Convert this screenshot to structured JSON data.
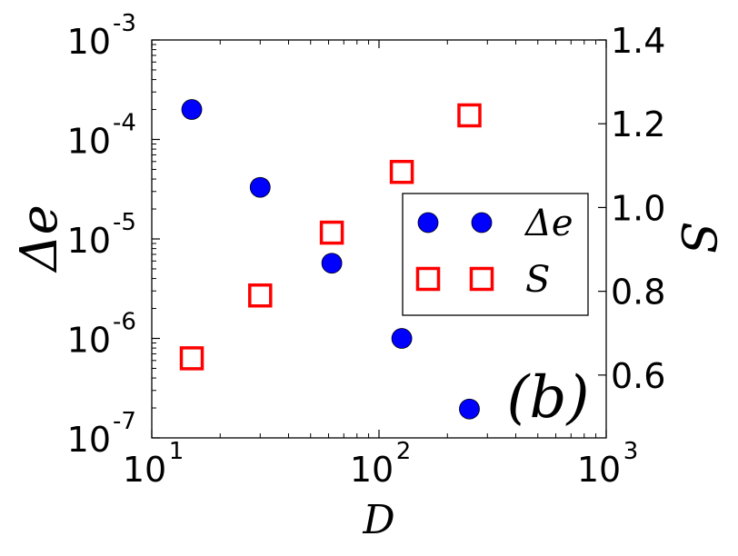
{
  "chart_data": {
    "type": "scatter",
    "title": "",
    "xlabel": "D",
    "ylabel_left": "Δe",
    "ylabel_right": "S",
    "panel_label": "(b)",
    "x_scale": "log",
    "y_left_scale": "log",
    "y_right_scale": "linear",
    "xlim": [
      10,
      1000
    ],
    "ylim_left": [
      1e-07,
      0.001
    ],
    "ylim_right": [
      0.45,
      1.4
    ],
    "x_ticks": [
      {
        "value": 10,
        "base": "10",
        "exp": "1"
      },
      {
        "value": 100,
        "base": "10",
        "exp": "2"
      },
      {
        "value": 1000,
        "base": "10",
        "exp": "3"
      }
    ],
    "y_left_ticks": [
      {
        "value": 0.001,
        "base": "10",
        "exp": "-3"
      },
      {
        "value": 0.0001,
        "base": "10",
        "exp": "-4"
      },
      {
        "value": 1e-05,
        "base": "10",
        "exp": "-5"
      },
      {
        "value": 1e-06,
        "base": "10",
        "exp": "-6"
      },
      {
        "value": 1e-07,
        "base": "10",
        "exp": "-7"
      }
    ],
    "y_right_ticks": [
      {
        "value": 0.6,
        "label": "0.6"
      },
      {
        "value": 0.8,
        "label": "0.8"
      },
      {
        "value": 1.0,
        "label": "1.0"
      },
      {
        "value": 1.2,
        "label": "1.2"
      },
      {
        "value": 1.4,
        "label": "1.4"
      }
    ],
    "series": [
      {
        "name": "Δe",
        "axis": "left",
        "marker": "circle",
        "color": "#0000ff",
        "x": [
          15,
          30,
          62,
          126,
          250
        ],
        "y": [
          0.0002,
          3.3e-05,
          5.7e-06,
          1e-06,
          1.95e-07
        ]
      },
      {
        "name": "S",
        "axis": "right",
        "marker": "square",
        "color": "#ff0000",
        "x": [
          15,
          30,
          62,
          126,
          250
        ],
        "y": [
          0.64,
          0.79,
          0.94,
          1.085,
          1.22
        ]
      }
    ],
    "legend_position": "center-right",
    "grid": false
  }
}
